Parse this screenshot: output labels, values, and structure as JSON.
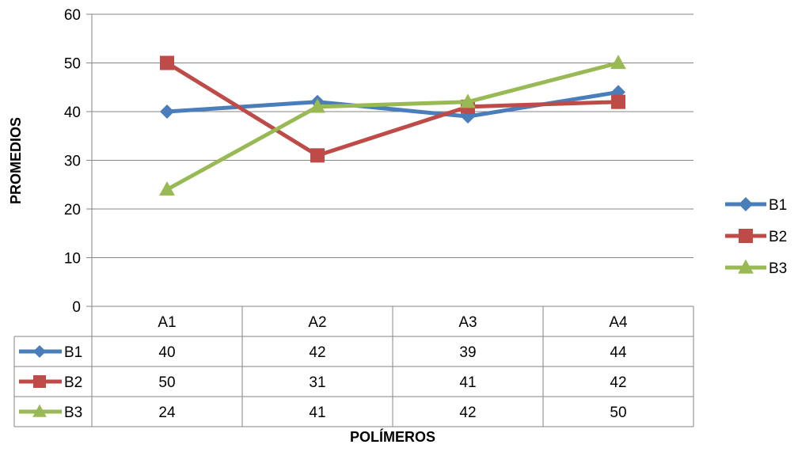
{
  "chart_data": {
    "type": "line",
    "categories": [
      "A1",
      "A2",
      "A3",
      "A4"
    ],
    "series": [
      {
        "name": "B1",
        "values": [
          40,
          42,
          39,
          44
        ],
        "color": "#4A7EBB",
        "marker": "diamond"
      },
      {
        "name": "B2",
        "values": [
          50,
          31,
          41,
          42
        ],
        "color": "#BE4B48",
        "marker": "square"
      },
      {
        "name": "B3",
        "values": [
          24,
          41,
          42,
          50
        ],
        "color": "#98B954",
        "marker": "triangle"
      }
    ],
    "xlabel": "POLÍMEROS",
    "ylabel": "PROMEDIOS",
    "ylim": [
      0,
      60
    ],
    "yticks": [
      0,
      10,
      20,
      30,
      40,
      50,
      60
    ],
    "grid": true,
    "legend": "right",
    "data_table": true
  }
}
